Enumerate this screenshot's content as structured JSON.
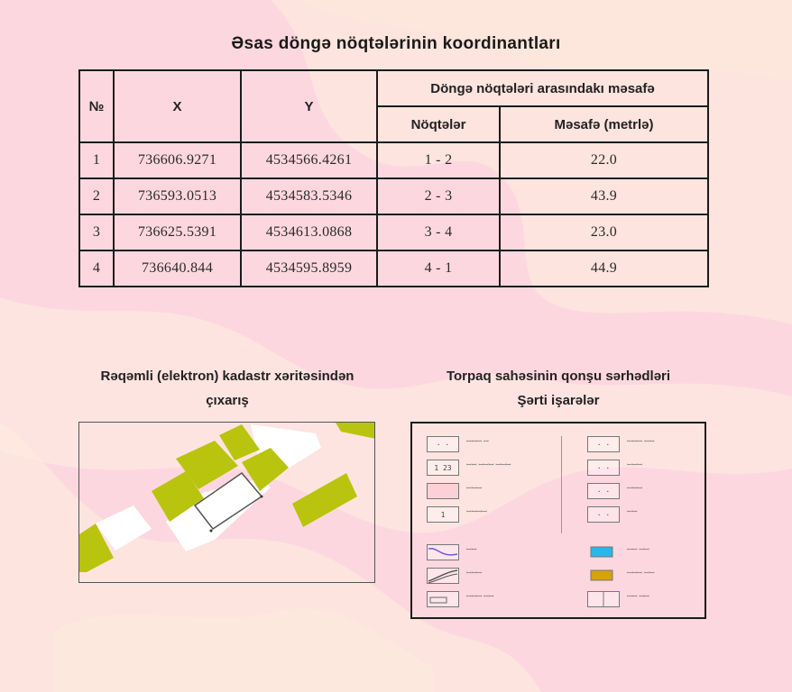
{
  "title": "Əsas döngə nöqtələrinin koordinantları",
  "table": {
    "headers": {
      "number": "№",
      "x": "X",
      "y": "Y",
      "distance_group": "Döngə nöqtələri arasındakı məsafə",
      "points": "Nöqtələr",
      "distance": "Məsafə (metrlə)"
    },
    "rows": [
      {
        "n": "1",
        "x": "736606.9271",
        "y": "4534566.4261",
        "points": "1 - 2",
        "distance": "22.0"
      },
      {
        "n": "2",
        "x": "736593.0513",
        "y": "4534583.5346",
        "points": "2 - 3",
        "distance": "43.9"
      },
      {
        "n": "3",
        "x": "736625.5391",
        "y": "4534613.0868",
        "points": "3 - 4",
        "distance": "23.0"
      },
      {
        "n": "4",
        "x": "736640.844",
        "y": "4534595.8959",
        "points": "4 - 1",
        "distance": "44.9"
      }
    ]
  },
  "map_section": {
    "title_line1": "Rəqəmli (elektron) kadastr xəritəsindən",
    "title_line2": "çıxarış"
  },
  "legend_section": {
    "title_line1": "Torpaq sahəsinin qonşu sərhədləri",
    "title_line2": "Şərti işarələr",
    "left_items": [
      {
        "icon": "boundary-points-icon",
        "box_text": "· ·",
        "text": "ꟷꟷꟷ ꟷ"
      },
      {
        "icon": "parcel-number-icon",
        "box_text": "1 23",
        "text": "ꟷꟷ ꟷꟷꟷ ꟷꟷꟷ"
      },
      {
        "icon": "land-area-icon",
        "box_text": "",
        "text": "ꟷꟷꟷ"
      },
      {
        "icon": "building-icon",
        "box_text": "1",
        "text": "ꟷꟷꟷꟷ"
      },
      {
        "icon": "river-line-icon",
        "box_text": "",
        "text": "ꟷꟷ"
      },
      {
        "icon": "road-line-icon",
        "box_text": "",
        "text": "ꟷꟷꟷ"
      },
      {
        "icon": "rail-line-icon",
        "box_text": "",
        "text": "ꟷꟷꟷ ꟷꟷ"
      }
    ],
    "right_items": [
      {
        "icon": "neighbour-boundary-icon",
        "box_text": "· ·",
        "text": "ꟷꟷꟷ ꟷꟷ"
      },
      {
        "icon": "neighbour-parcel-icon",
        "box_text": "· ·",
        "text": "ꟷꟷꟷ"
      },
      {
        "icon": "neighbour-plot-icon",
        "box_text": "· ·",
        "text": "ꟷꟷꟷ"
      },
      {
        "icon": "neighbour-other-icon",
        "box_text": "· ·",
        "text": "ꟷꟷ"
      },
      {
        "icon": "water-body-icon",
        "box_text": "",
        "text": "ꟷꟷ ꟷꟷ",
        "color": "#2ab7ea"
      },
      {
        "icon": "agricultural-land-icon",
        "box_text": "",
        "text": "ꟷꟷꟷ ꟷꟷ",
        "color": "#d6a20a"
      },
      {
        "icon": "map-sheet-icon",
        "box_text": "",
        "text": "ꟷꟷ ꟷꟷ"
      }
    ]
  },
  "colors": {
    "parcel_fill": "#b9c40e",
    "background_pink": "#fbd4e0",
    "background_peach": "#fde6dc"
  }
}
